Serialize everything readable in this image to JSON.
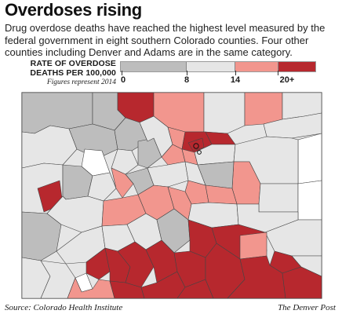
{
  "header": {
    "title": "Overdoses rising",
    "subtitle": "Drug overdose deaths have reached the highest level measured by the federal government in eight southern Colorado counties. Four other counties including Denver and Adams are in the same category."
  },
  "legend": {
    "title": "RATE OF OVERDOSE DEATHS PER 100,000",
    "note": "Figures represent 2014",
    "tick_labels": [
      "0",
      "8",
      "14",
      "20+"
    ],
    "bins": [
      {
        "min": 0,
        "max": 8,
        "color": "#bdbdbd"
      },
      {
        "min": 8,
        "max": 14,
        "color": "#e6e6e6"
      },
      {
        "min": 14,
        "max": 20,
        "color": "#f2968e"
      },
      {
        "min": 20,
        "max": null,
        "color": "#b7282e"
      }
    ]
  },
  "colors": {
    "no_data": "#ffffff",
    "border": "#444444",
    "state_border": "#555555"
  },
  "footer": {
    "source": "Source: Colorado Health Institute",
    "credit": "The Denver Post"
  }
}
